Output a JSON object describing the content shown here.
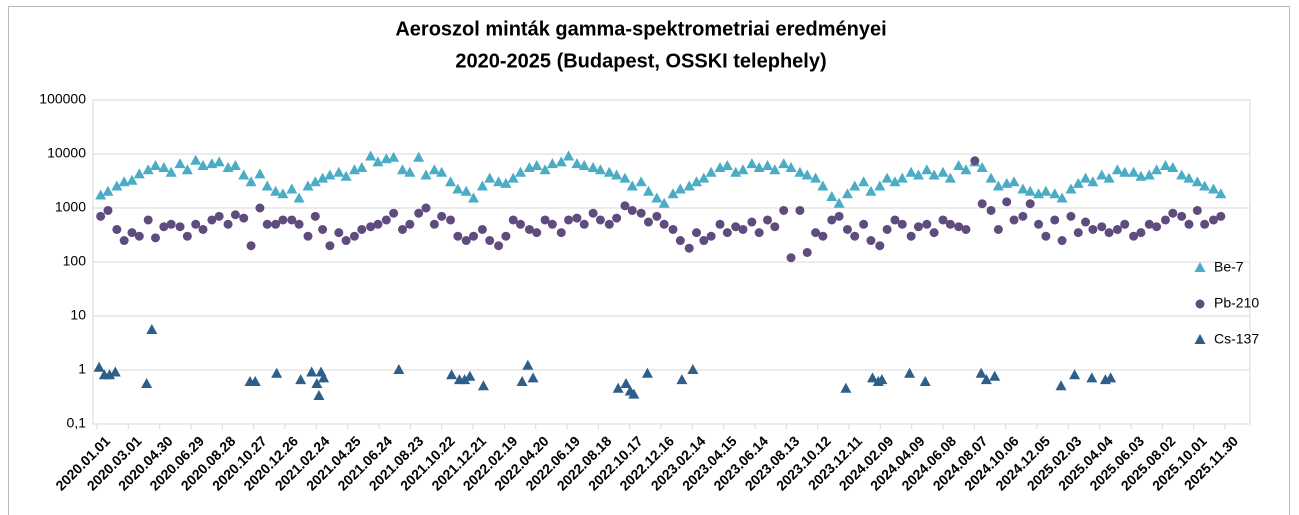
{
  "chart_data": {
    "type": "scatter",
    "title": [
      "Aeroszol minták gamma-spektrometriai eredményei",
      "2020-2025 (Budapest, OSSKI telephely)"
    ],
    "log_y": true,
    "grid": true,
    "legend": "right",
    "ylim": [
      0.1,
      100000
    ],
    "yticks": [
      {
        "value": 0.1,
        "label": "0,1"
      },
      1,
      10,
      100,
      1000,
      10000,
      100000
    ],
    "xlim": [
      "2020.01.01",
      "2025.11.30"
    ],
    "xticks": [
      "2020.01.01",
      "2020.03.01",
      "2020.04.30",
      "2020.06.29",
      "2020.08.28",
      "2020.10.27",
      "2020.12.26",
      "2021.02.24",
      "2021.04.25",
      "2021.06.24",
      "2021.08.23",
      "2021.10.22",
      "2021.12.21",
      "2022.02.19",
      "2022.04.20",
      "2022.06.19",
      "2022.08.18",
      "2022.10.17",
      "2022.12.16",
      "2023.02.14",
      "2023.04.15",
      "2023.06.14",
      "2023.08.13",
      "2023.10.12",
      "2023.12.11",
      "2024.02.09",
      "2024.04.09",
      "2024.06.08",
      "2024.08.07",
      "2024.10.06",
      "2024.12.05",
      "2025.02.03",
      "2025.04.04",
      "2025.06.03",
      "2025.08.02",
      "2025.10.01",
      "2025.11.30"
    ],
    "x": [
      "2020.01.08",
      "2020.01.22",
      "2020.02.08",
      "2020.02.22",
      "2020.03.08",
      "2020.03.22",
      "2020.04.08",
      "2020.04.22",
      "2020.05.08",
      "2020.05.22",
      "2020.06.08",
      "2020.06.22",
      "2020.07.08",
      "2020.07.22",
      "2020.08.08",
      "2020.08.22",
      "2020.09.08",
      "2020.09.22",
      "2020.10.08",
      "2020.10.22",
      "2020.11.08",
      "2020.11.22",
      "2020.12.08",
      "2020.12.22",
      "2021.01.08",
      "2021.01.22",
      "2021.02.08",
      "2021.02.22",
      "2021.03.08",
      "2021.03.22",
      "2021.04.08",
      "2021.04.22",
      "2021.05.08",
      "2021.05.22",
      "2021.06.08",
      "2021.06.22",
      "2021.07.08",
      "2021.07.22",
      "2021.08.08",
      "2021.08.22",
      "2021.09.08",
      "2021.09.22",
      "2021.10.08",
      "2021.10.22",
      "2021.11.08",
      "2021.11.22",
      "2021.12.08",
      "2021.12.22",
      "2022.01.08",
      "2022.01.22",
      "2022.02.08",
      "2022.02.22",
      "2022.03.08",
      "2022.03.22",
      "2022.04.08",
      "2022.04.22",
      "2022.05.08",
      "2022.05.22",
      "2022.06.08",
      "2022.06.22",
      "2022.07.08",
      "2022.07.22",
      "2022.08.08",
      "2022.08.22",
      "2022.09.08",
      "2022.09.22",
      "2022.10.08",
      "2022.10.22",
      "2022.11.08",
      "2022.11.22",
      "2022.12.08",
      "2022.12.22",
      "2023.01.08",
      "2023.01.22",
      "2023.02.08",
      "2023.02.22",
      "2023.03.08",
      "2023.03.22",
      "2023.04.08",
      "2023.04.22",
      "2023.05.08",
      "2023.05.22",
      "2023.06.08",
      "2023.06.22",
      "2023.07.08",
      "2023.07.22",
      "2023.08.08",
      "2023.08.22",
      "2023.09.08",
      "2023.09.22",
      "2023.10.08",
      "2023.10.22",
      "2023.11.08",
      "2023.11.22",
      "2023.12.08",
      "2023.12.22",
      "2024.01.08",
      "2024.01.22",
      "2024.02.08",
      "2024.02.22",
      "2024.03.08",
      "2024.03.22",
      "2024.04.08",
      "2024.04.22",
      "2024.05.08",
      "2024.05.22",
      "2024.06.08",
      "2024.06.22",
      "2024.07.08",
      "2024.07.22",
      "2024.08.08",
      "2024.08.22",
      "2024.09.08",
      "2024.09.22",
      "2024.10.08",
      "2024.10.22",
      "2024.11.08",
      "2024.11.22",
      "2024.12.08",
      "2024.12.22",
      "2025.01.08",
      "2025.01.22",
      "2025.02.08",
      "2025.02.22",
      "2025.03.08",
      "2025.03.22",
      "2025.04.08",
      "2025.04.22",
      "2025.05.08",
      "2025.05.22",
      "2025.06.08",
      "2025.06.22",
      "2025.07.08",
      "2025.07.22",
      "2025.08.08",
      "2025.08.22",
      "2025.09.08",
      "2025.09.22",
      "2025.10.08",
      "2025.10.22",
      "2025.11.08",
      "2025.11.22"
    ],
    "series": [
      {
        "name": "Be-7",
        "color": "#4bacc6",
        "marker": "triangle",
        "values": [
          1700,
          2000,
          2500,
          3000,
          3200,
          4200,
          5000,
          6000,
          5500,
          4500,
          6500,
          5000,
          7500,
          6000,
          6500,
          7000,
          5500,
          6000,
          4000,
          3000,
          4200,
          2500,
          2000,
          1800,
          2200,
          1500,
          2500,
          3000,
          3500,
          4000,
          4500,
          3800,
          5000,
          5500,
          9000,
          7000,
          8000,
          8500,
          5000,
          4500,
          8500,
          4000,
          5000,
          4500,
          3000,
          2200,
          2000,
          1500,
          2500,
          3500,
          3000,
          2800,
          3500,
          4500,
          5500,
          6000,
          5000,
          6500,
          7000,
          9000,
          6500,
          6000,
          5500,
          5000,
          4500,
          4000,
          3500,
          2500,
          3000,
          2000,
          1500,
          1200,
          1800,
          2200,
          2500,
          3000,
          3500,
          4500,
          5500,
          6000,
          4500,
          5000,
          6500,
          5500,
          6000,
          5000,
          6500,
          5500,
          4500,
          4000,
          3500,
          2500,
          1600,
          1200,
          1800,
          2500,
          3000,
          2000,
          2500,
          3500,
          3000,
          3500,
          4500,
          4000,
          5000,
          4000,
          4500,
          3500,
          6000,
          5000,
          7000,
          5500,
          3500,
          2500,
          2800,
          3000,
          2200,
          2000,
          1800,
          2000,
          1800,
          1500,
          2200,
          2800,
          3500,
          3000,
          4000,
          3500,
          5000,
          4500,
          4500,
          3800,
          4000,
          5000,
          6000,
          5500,
          4000,
          3500,
          3000,
          2500,
          2200,
          1800
        ]
      },
      {
        "name": "Pb-210",
        "color": "#5f4b7e",
        "marker": "circle",
        "values": [
          700,
          900,
          400,
          250,
          350,
          300,
          600,
          280,
          450,
          500,
          450,
          300,
          500,
          400,
          600,
          700,
          500,
          750,
          650,
          200,
          1000,
          500,
          500,
          600,
          600,
          500,
          300,
          700,
          400,
          200,
          350,
          250,
          300,
          400,
          450,
          500,
          600,
          800,
          400,
          500,
          800,
          1000,
          500,
          700,
          600,
          300,
          250,
          300,
          400,
          250,
          200,
          300,
          600,
          500,
          400,
          350,
          600,
          500,
          350,
          600,
          650,
          500,
          800,
          600,
          500,
          650,
          1100,
          900,
          800,
          550,
          700,
          500,
          400,
          250,
          180,
          350,
          250,
          300,
          500,
          350,
          450,
          400,
          550,
          350,
          600,
          450,
          900,
          120,
          900,
          150,
          350,
          300,
          600,
          700,
          400,
          300,
          500,
          250,
          200,
          400,
          600,
          500,
          300,
          450,
          500,
          350,
          600,
          500,
          450,
          400,
          7500,
          1200,
          900,
          400,
          1300,
          600,
          700,
          1200,
          500,
          300,
          600,
          250,
          700,
          350,
          550,
          400,
          450,
          350,
          400,
          500,
          300,
          350,
          500,
          450,
          600,
          800,
          700,
          500,
          900,
          500,
          600,
          700
        ]
      },
      {
        "name": "Cs-137",
        "color": "#2e5f8a",
        "marker": "triangle",
        "x": [
          "2020.01.05",
          "2020.01.15",
          "2020.01.25",
          "2020.02.05",
          "2020.04.05",
          "2020.04.15",
          "2020.10.20",
          "2020.10.30",
          "2020.12.10",
          "2021.01.25",
          "2021.02.15",
          "2021.02.25",
          "2021.03.01",
          "2021.03.05",
          "2021.03.10",
          "2021.08.01",
          "2021.11.10",
          "2021.11.25",
          "2021.12.05",
          "2021.12.15",
          "2022.01.10",
          "2022.03.25",
          "2022.04.05",
          "2022.04.15",
          "2022.09.25",
          "2022.10.10",
          "2022.10.18",
          "2022.10.25",
          "2022.11.20",
          "2023.01.25",
          "2023.02.15",
          "2023.12.05",
          "2024.01.25",
          "2024.02.05",
          "2024.02.12",
          "2024.04.05",
          "2024.05.05",
          "2024.08.20",
          "2024.08.30",
          "2024.09.15",
          "2025.01.20",
          "2025.02.15",
          "2025.03.20",
          "2025.04.15",
          "2025.04.25"
        ],
        "values": [
          1.1,
          0.8,
          0.8,
          0.9,
          0.55,
          5.5,
          0.6,
          0.6,
          0.85,
          0.65,
          0.9,
          0.55,
          0.33,
          0.9,
          0.7,
          1.0,
          0.8,
          0.65,
          0.65,
          0.75,
          0.5,
          0.6,
          1.2,
          0.7,
          0.45,
          0.55,
          0.4,
          0.35,
          0.85,
          0.65,
          1.0,
          0.45,
          0.7,
          0.6,
          0.65,
          0.85,
          0.6,
          0.85,
          0.65,
          0.75,
          0.5,
          0.8,
          0.7,
          0.65,
          0.7
        ]
      }
    ]
  }
}
